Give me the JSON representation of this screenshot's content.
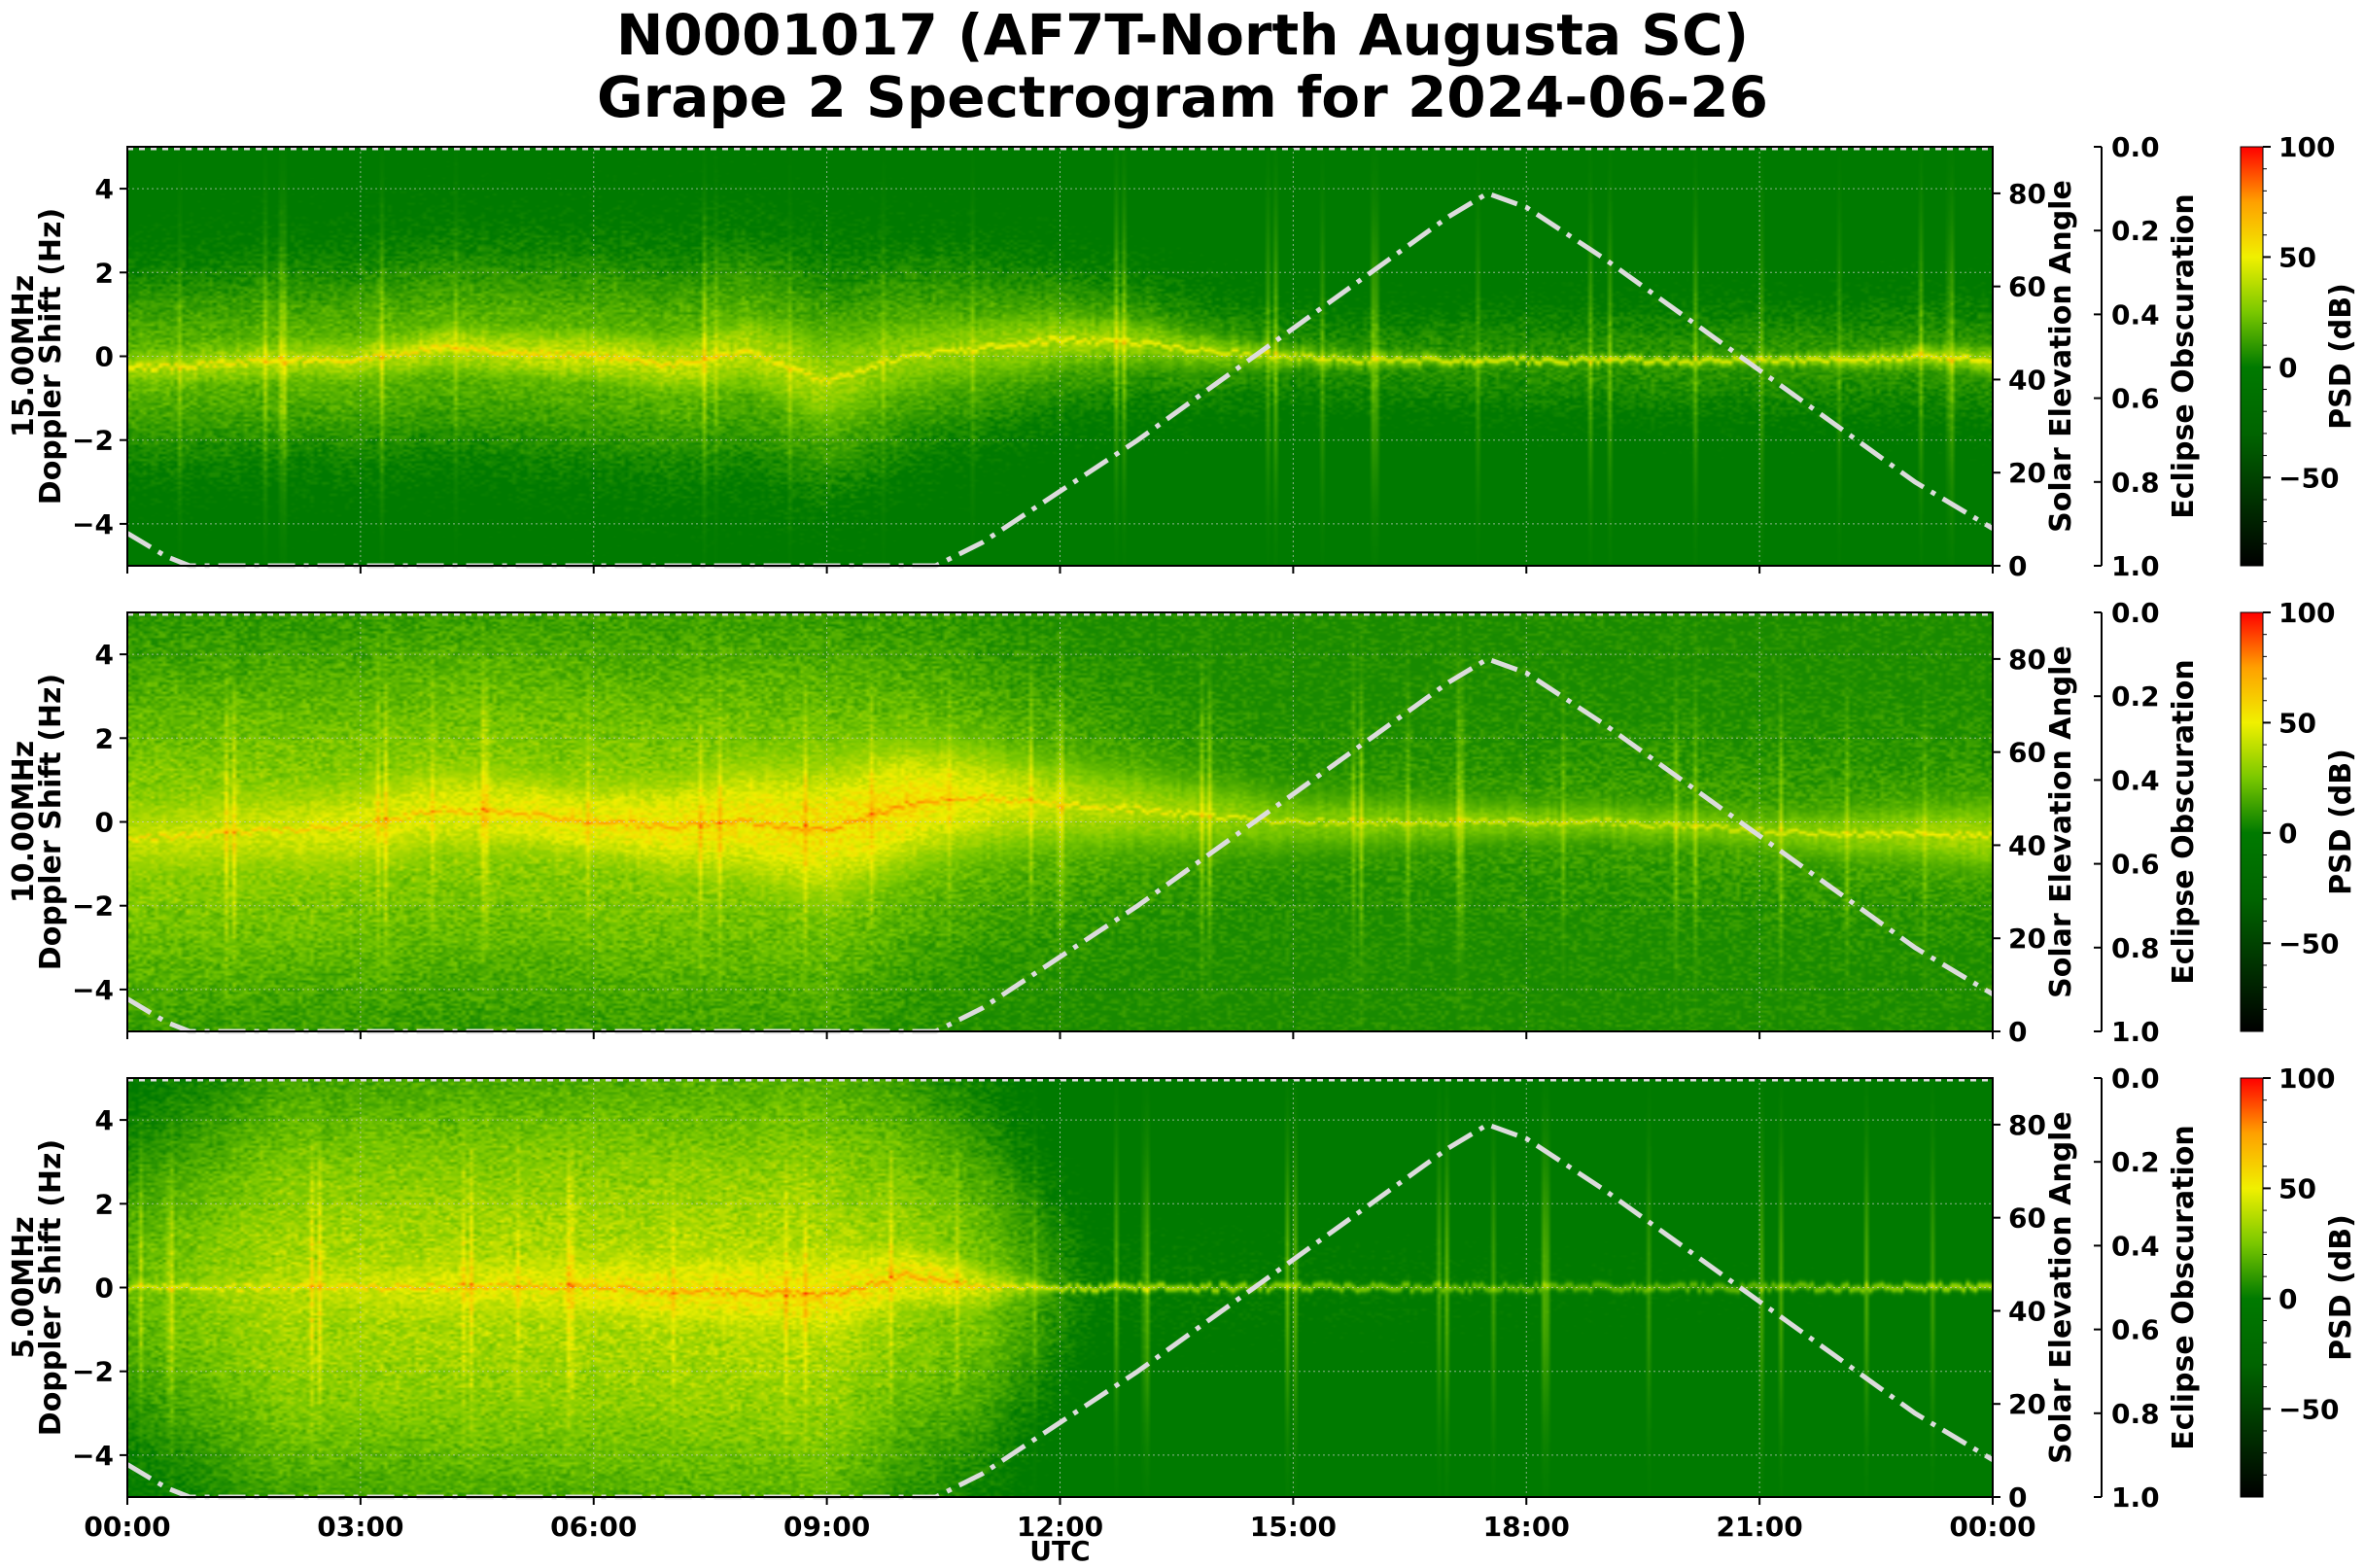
{
  "title": "N0001017 (AF7T-North Augusta SC)",
  "subtitle": "Grape 2 Spectrogram for 2024-06-26",
  "xlabel": "UTC",
  "colors": {
    "grid": "#cccccc",
    "elevation_line": "#dcdcdc",
    "axis": "#000000"
  },
  "colorbar": {
    "label": "PSD (dB)",
    "ticks": [
      100,
      50,
      0,
      -50
    ],
    "tick_labels": [
      "100",
      "50",
      "0",
      "−50"
    ],
    "range": [
      -90,
      100
    ],
    "stops": [
      {
        "db": -90,
        "color": "#000000"
      },
      {
        "db": -30,
        "color": "#006400"
      },
      {
        "db": 0,
        "color": "#007a00"
      },
      {
        "db": 25,
        "color": "#7ac800"
      },
      {
        "db": 50,
        "color": "#f0f000"
      },
      {
        "db": 75,
        "color": "#ffa000"
      },
      {
        "db": 100,
        "color": "#ff0000"
      }
    ]
  },
  "chart_data": [
    {
      "type": "heatmap",
      "frequency_label": "15.00MHz",
      "ylabel": "Doppler Shift (Hz)",
      "ylabel_right": "Solar Elevation Angle",
      "ylabel_right2": "Eclipse Obscuration",
      "ylim": [
        -5,
        5
      ],
      "yticks": [
        4,
        2,
        0,
        -2,
        -4
      ],
      "ytick_labels": [
        "4",
        "2",
        "0",
        "−2",
        "−4"
      ],
      "elevation_ylim": [
        0,
        90
      ],
      "elevation_ticks": [
        80,
        60,
        40,
        20,
        0
      ],
      "obscuration_ticks": [
        0.0,
        0.2,
        0.4,
        0.6,
        0.8,
        1.0
      ],
      "obscuration_tick_labels": [
        "0.0",
        "0.2",
        "0.4",
        "0.6",
        "0.8",
        "1.0"
      ],
      "xlim_hours": [
        0,
        24
      ],
      "xticks": [
        "00:00",
        "03:00",
        "06:00",
        "09:00",
        "12:00",
        "15:00",
        "18:00",
        "21:00",
        "00:00"
      ],
      "background_db": -5,
      "noise_db": 10,
      "carrier_trace": [
        {
          "x": 0,
          "y": -0.3
        },
        {
          "x": 1,
          "y": -0.2
        },
        {
          "x": 2,
          "y": -0.1
        },
        {
          "x": 3,
          "y": -0.1
        },
        {
          "x": 4,
          "y": 0.2
        },
        {
          "x": 5,
          "y": 0.1
        },
        {
          "x": 6,
          "y": 0.0
        },
        {
          "x": 7,
          "y": -0.2
        },
        {
          "x": 8,
          "y": 0.1
        },
        {
          "x": 9,
          "y": -0.6
        },
        {
          "x": 10,
          "y": 0.0
        },
        {
          "x": 11,
          "y": 0.2
        },
        {
          "x": 12,
          "y": 0.4
        },
        {
          "x": 13,
          "y": 0.3
        },
        {
          "x": 14,
          "y": 0.1
        },
        {
          "x": 15,
          "y": 0.0
        },
        {
          "x": 16,
          "y": -0.1
        },
        {
          "x": 17,
          "y": -0.1
        },
        {
          "x": 18,
          "y": -0.1
        },
        {
          "x": 19,
          "y": -0.1
        },
        {
          "x": 20,
          "y": -0.1
        },
        {
          "x": 21,
          "y": -0.1
        },
        {
          "x": 22,
          "y": -0.1
        },
        {
          "x": 23,
          "y": 0.0
        },
        {
          "x": 24,
          "y": -0.1
        }
      ],
      "carrier_strength_db": [
        {
          "x": 0,
          "db": 55
        },
        {
          "x": 6,
          "db": 65
        },
        {
          "x": 8,
          "db": 60
        },
        {
          "x": 10,
          "db": 50
        },
        {
          "x": 12,
          "db": 55
        },
        {
          "x": 15,
          "db": 45
        },
        {
          "x": 18,
          "db": 45
        },
        {
          "x": 21,
          "db": 45
        },
        {
          "x": 24,
          "db": 55
        }
      ],
      "spread_hz": [
        {
          "x": 0,
          "v": 0.4
        },
        {
          "x": 4,
          "v": 0.5
        },
        {
          "x": 7,
          "v": 0.6
        },
        {
          "x": 9,
          "v": 1.0
        },
        {
          "x": 11,
          "v": 0.7
        },
        {
          "x": 13,
          "v": 0.5
        },
        {
          "x": 15,
          "v": 0.25
        },
        {
          "x": 18,
          "v": 0.1
        },
        {
          "x": 21,
          "v": 0.15
        },
        {
          "x": 24,
          "v": 0.3
        }
      ],
      "haze": [
        {
          "x": 0,
          "db": 20,
          "h": 1.5
        },
        {
          "x": 9,
          "db": 22,
          "h": 1.8
        },
        {
          "x": 12,
          "db": 18,
          "h": 1.2
        },
        {
          "x": 15,
          "db": 8,
          "h": 0.8
        },
        {
          "x": 24,
          "db": 10,
          "h": 1.0
        }
      ]
    },
    {
      "type": "heatmap",
      "frequency_label": "10.00MHz",
      "ylabel": "Doppler Shift (Hz)",
      "ylabel_right": "Solar Elevation Angle",
      "ylabel_right2": "Eclipse Obscuration",
      "ylim": [
        -5,
        5
      ],
      "yticks": [
        4,
        2,
        0,
        -2,
        -4
      ],
      "ytick_labels": [
        "4",
        "2",
        "0",
        "−2",
        "−4"
      ],
      "elevation_ylim": [
        0,
        90
      ],
      "elevation_ticks": [
        80,
        60,
        40,
        20,
        0
      ],
      "obscuration_ticks": [
        0.0,
        0.2,
        0.4,
        0.6,
        0.8,
        1.0
      ],
      "obscuration_tick_labels": [
        "0.0",
        "0.2",
        "0.4",
        "0.6",
        "0.8",
        "1.0"
      ],
      "xlim_hours": [
        0,
        24
      ],
      "xticks": [
        "00:00",
        "03:00",
        "06:00",
        "09:00",
        "12:00",
        "15:00",
        "18:00",
        "21:00",
        "00:00"
      ],
      "background_db": 5,
      "noise_db": 14,
      "carrier_trace": [
        {
          "x": 0,
          "y": -0.4
        },
        {
          "x": 1,
          "y": -0.3
        },
        {
          "x": 2,
          "y": -0.2
        },
        {
          "x": 3,
          "y": -0.1
        },
        {
          "x": 4,
          "y": 0.3
        },
        {
          "x": 5,
          "y": 0.2
        },
        {
          "x": 6,
          "y": 0.0
        },
        {
          "x": 7,
          "y": -0.1
        },
        {
          "x": 8,
          "y": 0.0
        },
        {
          "x": 9,
          "y": -0.2
        },
        {
          "x": 10,
          "y": 0.4
        },
        {
          "x": 11,
          "y": 0.6
        },
        {
          "x": 12,
          "y": 0.4
        },
        {
          "x": 13,
          "y": 0.3
        },
        {
          "x": 14,
          "y": 0.1
        },
        {
          "x": 15,
          "y": 0.0
        },
        {
          "x": 16,
          "y": 0.0
        },
        {
          "x": 17,
          "y": 0.0
        },
        {
          "x": 18,
          "y": 0.0
        },
        {
          "x": 19,
          "y": 0.0
        },
        {
          "x": 20,
          "y": -0.1
        },
        {
          "x": 21,
          "y": -0.2
        },
        {
          "x": 22,
          "y": -0.3
        },
        {
          "x": 23,
          "y": -0.3
        },
        {
          "x": 24,
          "y": -0.3
        }
      ],
      "carrier_strength_db": [
        {
          "x": 0,
          "db": 60
        },
        {
          "x": 6,
          "db": 75
        },
        {
          "x": 10,
          "db": 80
        },
        {
          "x": 12,
          "db": 60
        },
        {
          "x": 15,
          "db": 45
        },
        {
          "x": 18,
          "db": 45
        },
        {
          "x": 21,
          "db": 45
        },
        {
          "x": 24,
          "db": 55
        }
      ],
      "spread_hz": [
        {
          "x": 0,
          "v": 0.8
        },
        {
          "x": 3,
          "v": 1.0
        },
        {
          "x": 6,
          "v": 0.8
        },
        {
          "x": 9,
          "v": 1.4
        },
        {
          "x": 12,
          "v": 0.8
        },
        {
          "x": 15,
          "v": 0.5
        },
        {
          "x": 18,
          "v": 0.35
        },
        {
          "x": 21,
          "v": 0.35
        },
        {
          "x": 24,
          "v": 0.6
        }
      ],
      "haze": [
        {
          "x": 0,
          "db": 30,
          "h": 2.8
        },
        {
          "x": 9,
          "db": 30,
          "h": 3.2
        },
        {
          "x": 12,
          "db": 20,
          "h": 2.0
        },
        {
          "x": 15,
          "db": 10,
          "h": 1.2
        },
        {
          "x": 24,
          "db": 15,
          "h": 1.5
        }
      ]
    },
    {
      "type": "heatmap",
      "frequency_label": "5.00MHz",
      "ylabel": "Doppler Shift (Hz)",
      "ylabel_right": "Solar Elevation Angle",
      "ylabel_right2": "Eclipse Obscuration",
      "ylim": [
        -5,
        5
      ],
      "yticks": [
        4,
        2,
        0,
        -2,
        -4
      ],
      "ytick_labels": [
        "4",
        "2",
        "0",
        "−2",
        "−4"
      ],
      "elevation_ylim": [
        0,
        90
      ],
      "elevation_ticks": [
        80,
        60,
        40,
        20,
        0
      ],
      "obscuration_ticks": [
        0.0,
        0.2,
        0.4,
        0.6,
        0.8,
        1.0
      ],
      "obscuration_tick_labels": [
        "0.0",
        "0.2",
        "0.4",
        "0.6",
        "0.8",
        "1.0"
      ],
      "xlim_hours": [
        0,
        24
      ],
      "xticks": [
        "00:00",
        "03:00",
        "06:00",
        "09:00",
        "12:00",
        "15:00",
        "18:00",
        "21:00",
        "00:00"
      ],
      "background_db": -5,
      "noise_db": 10,
      "carrier_trace": [
        {
          "x": 0,
          "y": 0.0
        },
        {
          "x": 1,
          "y": 0.0
        },
        {
          "x": 2,
          "y": 0.0
        },
        {
          "x": 3,
          "y": 0.0
        },
        {
          "x": 4,
          "y": 0.0
        },
        {
          "x": 5,
          "y": 0.05
        },
        {
          "x": 6,
          "y": 0.0
        },
        {
          "x": 7,
          "y": -0.1
        },
        {
          "x": 8,
          "y": -0.1
        },
        {
          "x": 9,
          "y": -0.2
        },
        {
          "x": 10,
          "y": 0.3
        },
        {
          "x": 11,
          "y": 0.0
        },
        {
          "x": 12,
          "y": 0.0
        },
        {
          "x": 13,
          "y": 0.0
        },
        {
          "x": 14,
          "y": 0.0
        },
        {
          "x": 15,
          "y": 0.0
        },
        {
          "x": 16,
          "y": 0.0
        },
        {
          "x": 17,
          "y": 0.0
        },
        {
          "x": 18,
          "y": 0.0
        },
        {
          "x": 19,
          "y": 0.0
        },
        {
          "x": 20,
          "y": 0.0
        },
        {
          "x": 21,
          "y": 0.0
        },
        {
          "x": 22,
          "y": 0.0
        },
        {
          "x": 23,
          "y": 0.0
        },
        {
          "x": 24,
          "y": 0.0
        }
      ],
      "carrier_strength_db": [
        {
          "x": 0,
          "db": 45
        },
        {
          "x": 3,
          "db": 65
        },
        {
          "x": 6,
          "db": 75
        },
        {
          "x": 9,
          "db": 80
        },
        {
          "x": 10.5,
          "db": 75
        },
        {
          "x": 12,
          "db": 40
        },
        {
          "x": 15,
          "db": 28
        },
        {
          "x": 18,
          "db": 20
        },
        {
          "x": 21,
          "db": 20
        },
        {
          "x": 24,
          "db": 35
        }
      ],
      "spread_hz": [
        {
          "x": 0,
          "v": 0.2
        },
        {
          "x": 3,
          "v": 0.8
        },
        {
          "x": 6,
          "v": 0.9
        },
        {
          "x": 9,
          "v": 1.1
        },
        {
          "x": 11,
          "v": 0.6
        },
        {
          "x": 12,
          "v": 0.1
        },
        {
          "x": 24,
          "v": 0.1
        }
      ],
      "haze": [
        {
          "x": 0,
          "db": 20,
          "h": 2.5
        },
        {
          "x": 2,
          "db": 35,
          "h": 4.0
        },
        {
          "x": 9,
          "db": 38,
          "h": 4.5
        },
        {
          "x": 11,
          "db": 25,
          "h": 3.0
        },
        {
          "x": 12.5,
          "db": 0,
          "h": 1.0
        },
        {
          "x": 24,
          "db": -5,
          "h": 0.5
        }
      ]
    }
  ],
  "solar_elevation": [
    {
      "x": 0.0,
      "y": 7
    },
    {
      "x": 0.5,
      "y": 2
    },
    {
      "x": 0.8,
      "y": 0
    },
    {
      "x": 10.4,
      "y": 0
    },
    {
      "x": 11.0,
      "y": 5
    },
    {
      "x": 12.0,
      "y": 16
    },
    {
      "x": 13.0,
      "y": 27
    },
    {
      "x": 14.0,
      "y": 39
    },
    {
      "x": 15.0,
      "y": 51
    },
    {
      "x": 16.0,
      "y": 63
    },
    {
      "x": 17.0,
      "y": 75
    },
    {
      "x": 17.5,
      "y": 80
    },
    {
      "x": 18.0,
      "y": 77
    },
    {
      "x": 19.0,
      "y": 66
    },
    {
      "x": 20.0,
      "y": 54
    },
    {
      "x": 21.0,
      "y": 42
    },
    {
      "x": 22.0,
      "y": 30
    },
    {
      "x": 23.0,
      "y": 18
    },
    {
      "x": 24.0,
      "y": 8
    }
  ]
}
